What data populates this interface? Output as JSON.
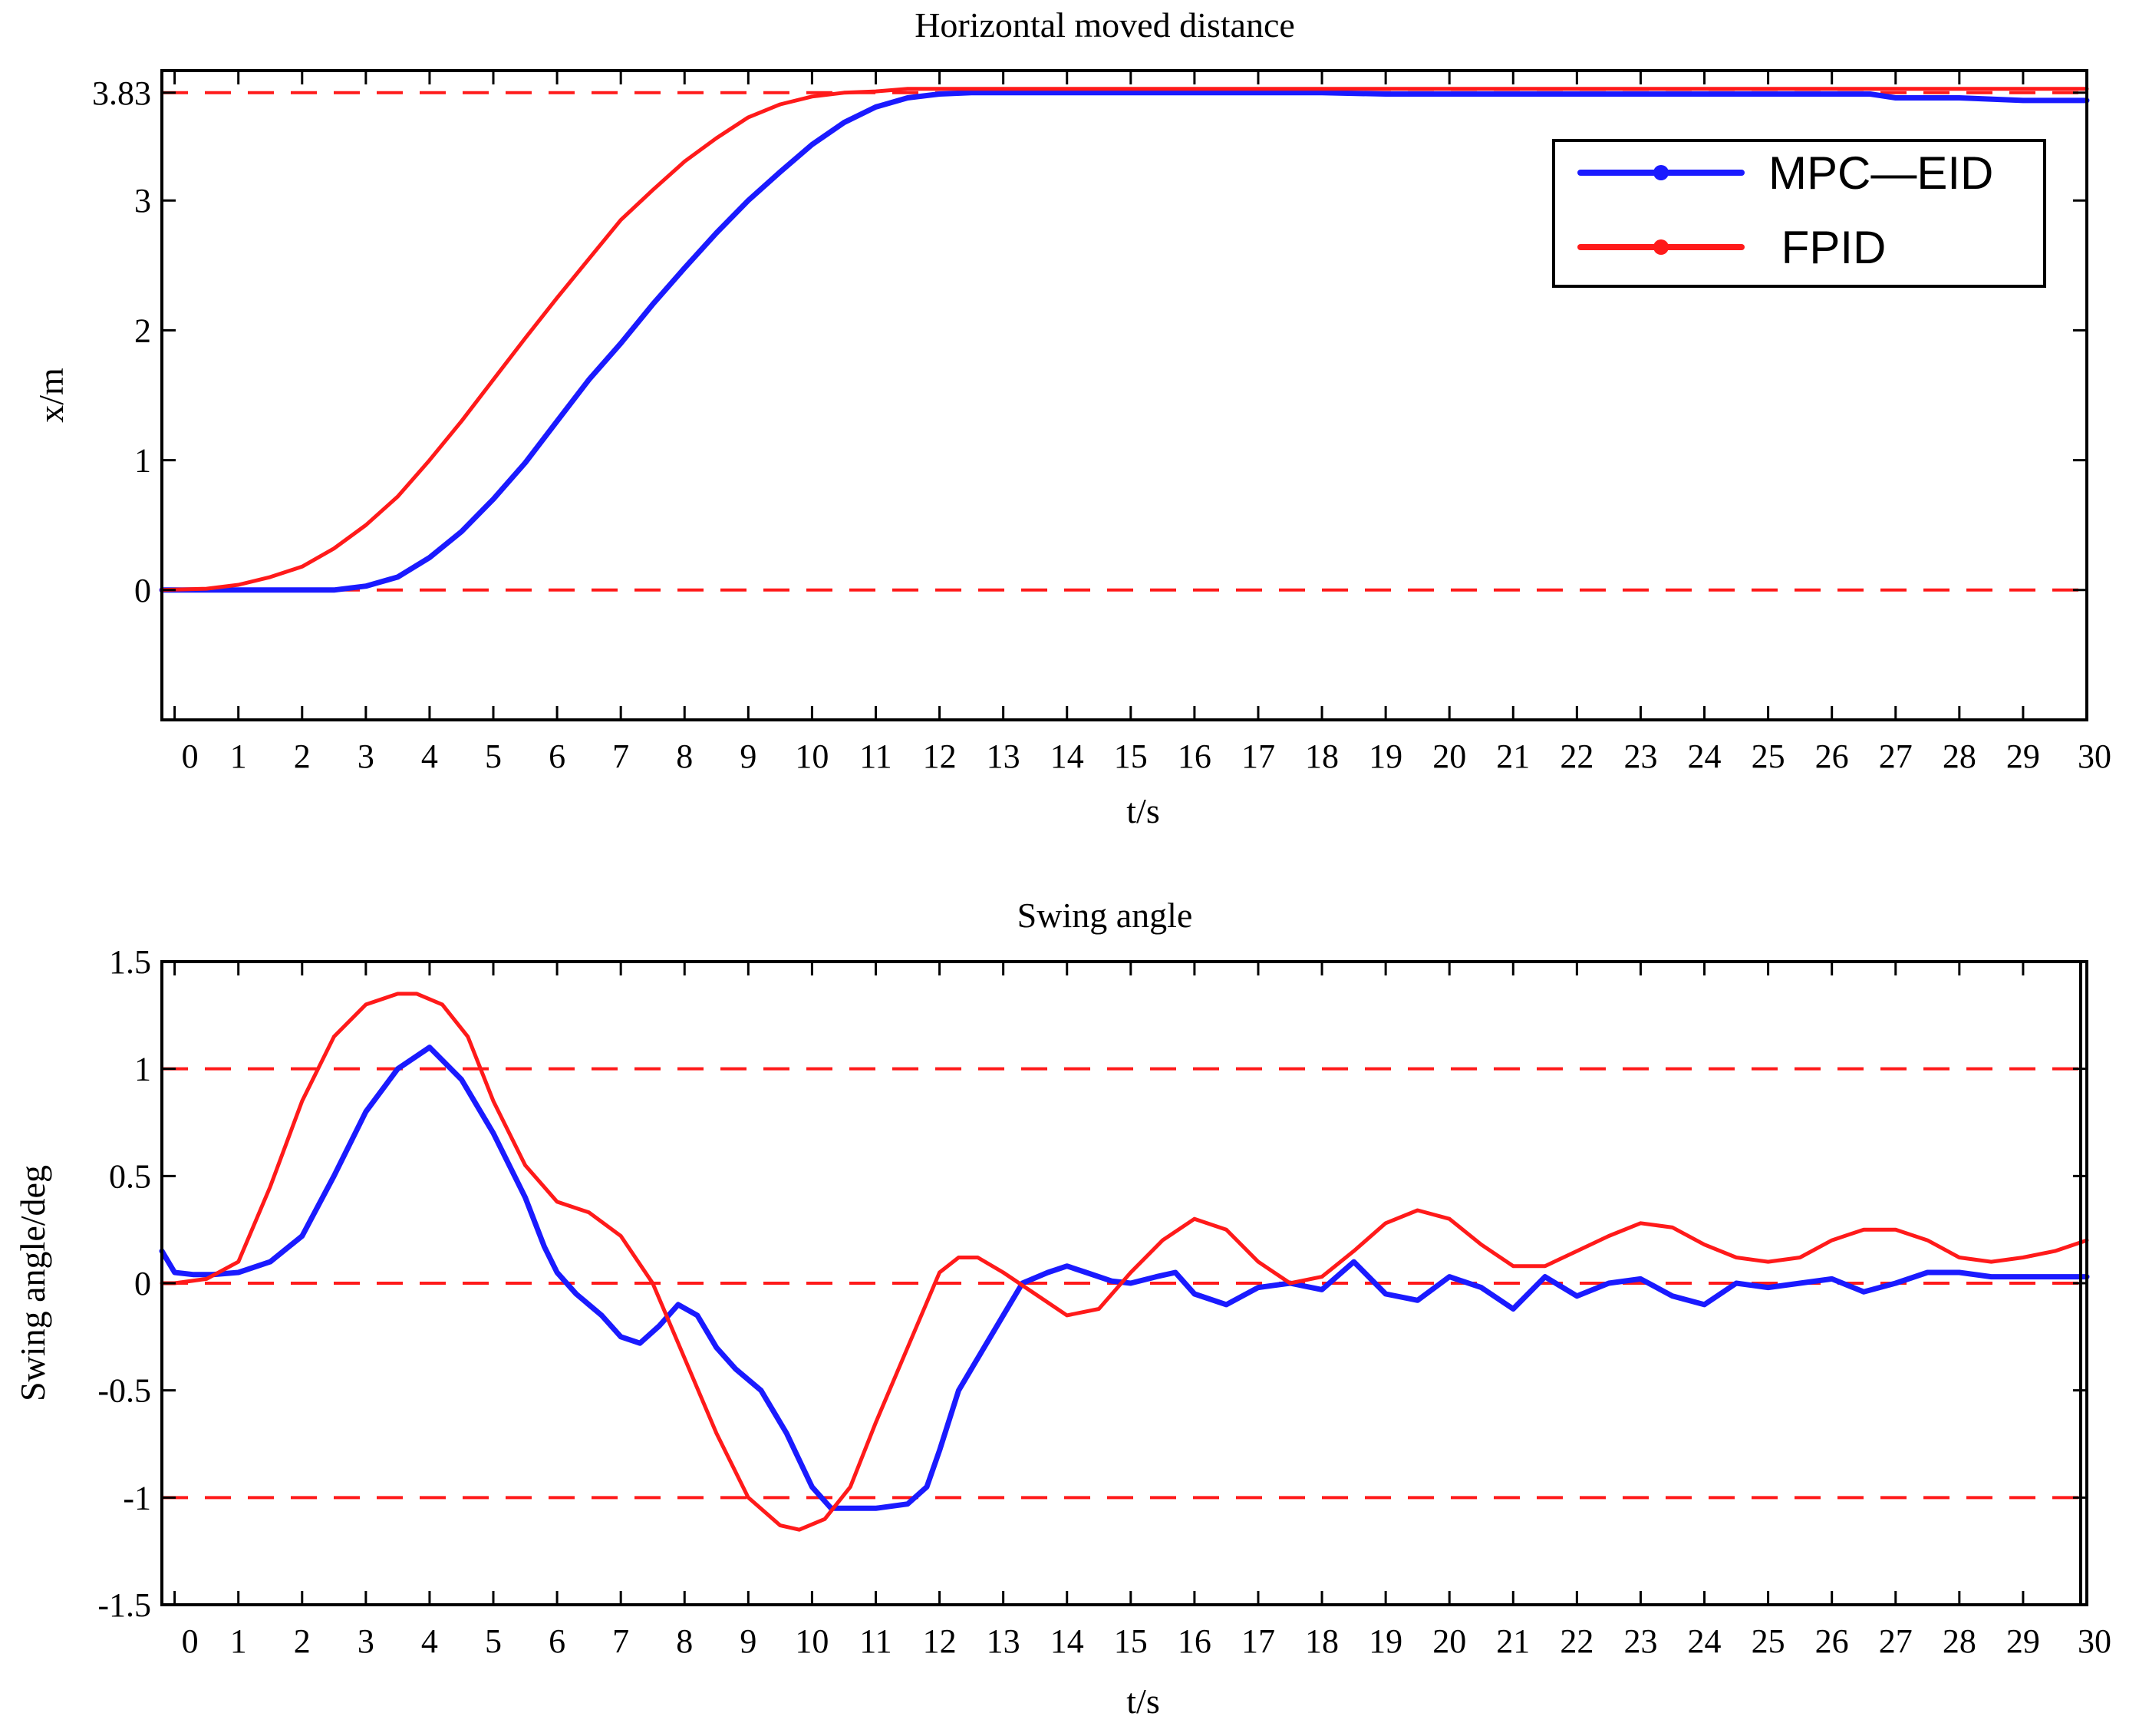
{
  "colors": {
    "mpc": "#1a1aff",
    "fpid": "#ff1a1a",
    "ref": "#ff1a1a",
    "axis": "#000000"
  },
  "chart_data": [
    {
      "type": "line",
      "title": "Horizontal moved  distance",
      "xlabel": "t/s",
      "ylabel": "x/m",
      "xlim": [
        -0.2,
        30
      ],
      "ylim": [
        -1,
        4
      ],
      "xticks": [
        "0",
        "1",
        "2",
        "3",
        "4",
        "5",
        "6",
        "7",
        "8",
        "9",
        "10",
        "11",
        "12",
        "13",
        "14",
        "15",
        "16",
        "17",
        "18",
        "19",
        "20",
        "21",
        "22",
        "23",
        "24",
        "25",
        "26",
        "27",
        "28",
        "29",
        "30"
      ],
      "yticks": [
        {
          "value": 3.83,
          "label": "3.83"
        },
        {
          "value": 3,
          "label": "3"
        },
        {
          "value": 2,
          "label": "2"
        },
        {
          "value": 1,
          "label": "1"
        },
        {
          "value": 0,
          "label": "0"
        }
      ],
      "reference_lines": [
        3.83,
        0
      ],
      "legend": {
        "position": "top-right",
        "entries": [
          "MPC—EID",
          " FPID"
        ]
      },
      "series": [
        {
          "name": "MPC—EID",
          "color_key": "mpc",
          "x": [
            -0.2,
            0.5,
            1,
            1.5,
            2,
            2.5,
            3,
            3.5,
            4,
            4.5,
            5,
            5.5,
            6,
            6.5,
            7,
            7.5,
            8,
            8.5,
            9,
            9.5,
            10,
            10.5,
            11,
            11.5,
            12,
            12.5,
            13,
            14,
            15,
            16,
            17,
            18,
            19,
            20,
            21,
            22,
            23,
            24,
            25,
            26,
            26.6,
            27,
            28,
            29,
            30
          ],
          "y": [
            0,
            0,
            0,
            0,
            0,
            0,
            0.03,
            0.1,
            0.25,
            0.45,
            0.7,
            0.98,
            1.3,
            1.62,
            1.9,
            2.2,
            2.48,
            2.75,
            3.0,
            3.22,
            3.43,
            3.6,
            3.72,
            3.79,
            3.82,
            3.83,
            3.83,
            3.83,
            3.83,
            3.83,
            3.83,
            3.83,
            3.82,
            3.82,
            3.82,
            3.82,
            3.82,
            3.82,
            3.82,
            3.82,
            3.82,
            3.79,
            3.79,
            3.77,
            3.77
          ]
        },
        {
          "name": " FPID",
          "color_key": "fpid",
          "x": [
            -0.2,
            0.5,
            1,
            1.5,
            2,
            2.5,
            3,
            3.5,
            4,
            4.5,
            5,
            5.5,
            6,
            6.5,
            7,
            7.5,
            8,
            8.5,
            9,
            9.5,
            10,
            10.5,
            11,
            11.5,
            12,
            13,
            15,
            20,
            25,
            30
          ],
          "y": [
            0,
            0.01,
            0.04,
            0.1,
            0.18,
            0.32,
            0.5,
            0.72,
            1.0,
            1.3,
            1.62,
            1.94,
            2.25,
            2.55,
            2.85,
            3.08,
            3.3,
            3.48,
            3.64,
            3.74,
            3.8,
            3.83,
            3.84,
            3.86,
            3.86,
            3.86,
            3.86,
            3.86,
            3.86,
            3.86
          ]
        }
      ]
    },
    {
      "type": "line",
      "title": "Swing angle",
      "xlabel": "t/s",
      "ylabel": "Swing angle/deg",
      "xlim": [
        -0.2,
        30
      ],
      "ylim": [
        -1.5,
        1.5
      ],
      "xticks": [
        "0",
        "1",
        "2",
        "3",
        "4",
        "5",
        "6",
        "7",
        "8",
        "9",
        "10",
        "11",
        "12",
        "13",
        "14",
        "15",
        "16",
        "17",
        "18",
        "19",
        "20",
        "21",
        "22",
        "23",
        "24",
        "25",
        "26",
        "27",
        "28",
        "29",
        "30"
      ],
      "yticks": [
        {
          "value": 1.5,
          "label": "1.5"
        },
        {
          "value": 1,
          "label": "1"
        },
        {
          "value": 0.5,
          "label": "0.5"
        },
        {
          "value": 0,
          "label": "0"
        },
        {
          "value": -0.5,
          "label": "-0.5"
        },
        {
          "value": -1,
          "label": "-1"
        },
        {
          "value": -1.5,
          "label": "-1.5"
        }
      ],
      "reference_lines": [
        1,
        0,
        -1
      ],
      "series": [
        {
          "name": "MPC—EID",
          "color_key": "mpc",
          "x": [
            -0.2,
            0,
            0.3,
            0.6,
            1,
            1.5,
            2,
            2.5,
            3,
            3.5,
            4,
            4.5,
            5,
            5.5,
            5.8,
            6,
            6.3,
            6.7,
            7,
            7.3,
            7.6,
            7.9,
            8.2,
            8.5,
            8.8,
            9.2,
            9.6,
            10,
            10.3,
            10.6,
            11,
            11.5,
            11.8,
            12,
            12.3,
            12.7,
            13,
            13.3,
            13.7,
            14,
            14.3,
            14.7,
            15,
            15.4,
            15.7,
            16,
            16.5,
            17,
            17.5,
            18,
            18.5,
            19,
            19.5,
            20,
            20.5,
            21,
            21.5,
            22,
            22.5,
            23,
            23.5,
            24,
            24.5,
            25,
            25.5,
            26,
            26.5,
            27,
            27.5,
            28,
            28.5,
            29,
            29.5,
            30
          ],
          "y": [
            0.15,
            0.05,
            0.04,
            0.04,
            0.05,
            0.1,
            0.22,
            0.5,
            0.8,
            1.0,
            1.1,
            0.95,
            0.7,
            0.4,
            0.17,
            0.05,
            -0.05,
            -0.15,
            -0.25,
            -0.28,
            -0.2,
            -0.1,
            -0.15,
            -0.3,
            -0.4,
            -0.5,
            -0.7,
            -0.95,
            -1.05,
            -1.05,
            -1.05,
            -1.03,
            -0.95,
            -0.78,
            -0.5,
            -0.3,
            -0.15,
            0.0,
            0.05,
            0.08,
            0.05,
            0.01,
            0.0,
            0.03,
            0.05,
            -0.05,
            -0.1,
            -0.02,
            0.0,
            -0.03,
            0.1,
            -0.05,
            -0.08,
            0.03,
            -0.02,
            -0.12,
            0.03,
            -0.06,
            0.0,
            0.02,
            -0.06,
            -0.1,
            0.0,
            -0.02,
            0.0,
            0.02,
            -0.04,
            0.0,
            0.05,
            0.05,
            0.03,
            0.03,
            0.03,
            0.03
          ]
        },
        {
          "name": " FPID",
          "color_key": "fpid",
          "x": [
            -0.2,
            0,
            0.5,
            1,
            1.5,
            2,
            2.5,
            3,
            3.5,
            3.8,
            4.2,
            4.6,
            5,
            5.5,
            6,
            6.5,
            7,
            7.5,
            8,
            8.5,
            9,
            9.5,
            9.8,
            10.2,
            10.6,
            11,
            11.5,
            12,
            12.3,
            12.6,
            13,
            13.5,
            14,
            14.5,
            15,
            15.5,
            16,
            16.5,
            17,
            17.5,
            18,
            18.5,
            19,
            19.5,
            20,
            20.5,
            21,
            21.5,
            22,
            22.5,
            23,
            23.5,
            24,
            24.5,
            25,
            25.5,
            26,
            26.5,
            27,
            27.5,
            28,
            28.5,
            29,
            29.5,
            30
          ],
          "y": [
            0,
            0,
            0.02,
            0.1,
            0.45,
            0.85,
            1.15,
            1.3,
            1.35,
            1.35,
            1.3,
            1.15,
            0.85,
            0.55,
            0.38,
            0.33,
            0.22,
            0.0,
            -0.35,
            -0.7,
            -1.0,
            -1.13,
            -1.15,
            -1.1,
            -0.95,
            -0.65,
            -0.3,
            0.05,
            0.12,
            0.12,
            0.05,
            -0.05,
            -0.15,
            -0.12,
            0.05,
            0.2,
            0.3,
            0.25,
            0.1,
            0.0,
            0.03,
            0.15,
            0.28,
            0.34,
            0.3,
            0.18,
            0.08,
            0.08,
            0.15,
            0.22,
            0.28,
            0.26,
            0.18,
            0.12,
            0.1,
            0.12,
            0.2,
            0.25,
            0.25,
            0.2,
            0.12,
            0.1,
            0.12,
            0.15,
            0.2
          ]
        }
      ]
    }
  ]
}
